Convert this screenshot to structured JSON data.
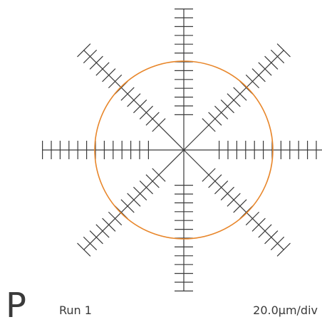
{
  "label": {
    "letter": "P",
    "run": "Run 1",
    "scale": "20.0μm/div"
  }
}
